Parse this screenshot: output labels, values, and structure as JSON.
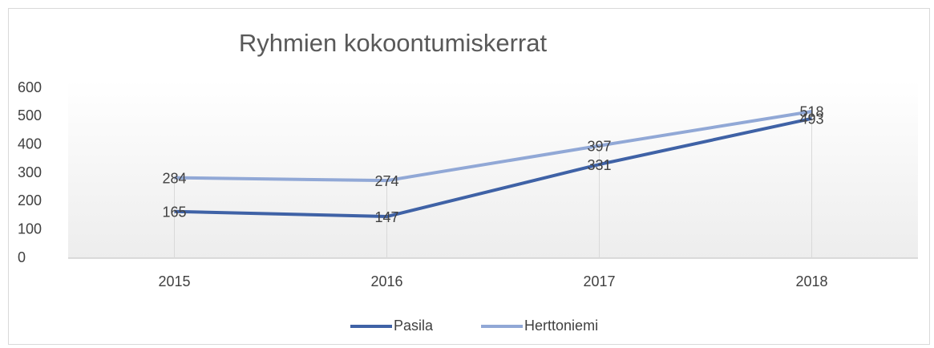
{
  "chart_data": {
    "type": "line",
    "title": "Ryhmien kokoontumiskerrat",
    "categories": [
      "2015",
      "2016",
      "2017",
      "2018"
    ],
    "series": [
      {
        "name": "Pasila",
        "color": "#3f62a6",
        "values": [
          165,
          147,
          331,
          493
        ]
      },
      {
        "name": "Herttoniemi",
        "color": "#91a8d6",
        "values": [
          284,
          274,
          397,
          518
        ]
      }
    ],
    "ylim": [
      0,
      600
    ],
    "yticks": [
      0,
      100,
      200,
      300,
      400,
      500,
      600
    ],
    "legend": "bottom"
  }
}
